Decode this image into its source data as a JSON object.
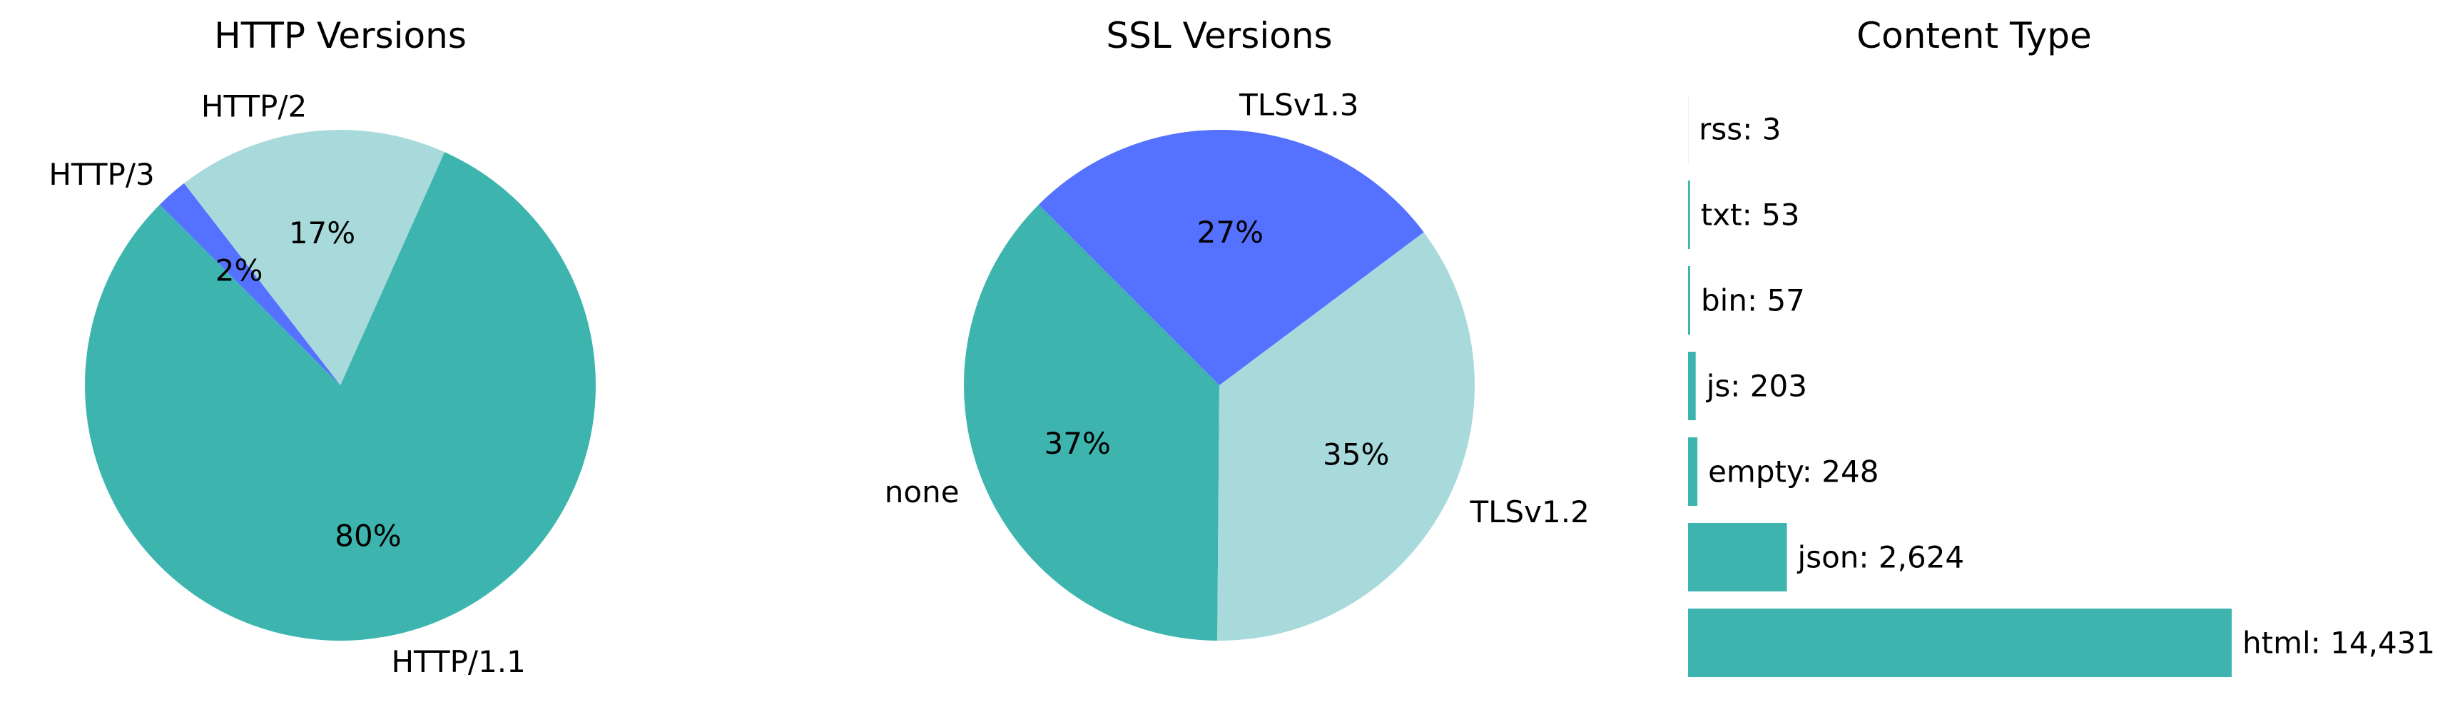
{
  "chart_data": [
    {
      "type": "pie",
      "title": "HTTP Versions",
      "slices": [
        {
          "label": "HTTP/1.1",
          "percent": 80,
          "percent_label": "80%",
          "color": "#3db5ae"
        },
        {
          "label": "HTTP/2",
          "percent": 17,
          "percent_label": "17%",
          "color": "#a8dadc"
        },
        {
          "label": "HTTP/3",
          "percent": 2,
          "percent_label": "2%",
          "color": "#5471ff"
        }
      ],
      "start_angle_deg": 135
    },
    {
      "type": "pie",
      "title": "SSL Versions",
      "slices": [
        {
          "label": "none",
          "percent": 37,
          "percent_label": "37%",
          "color": "#3db5ae"
        },
        {
          "label": "TLSv1.2",
          "percent": 35,
          "percent_label": "35%",
          "color": "#a8dadc"
        },
        {
          "label": "TLSv1.3",
          "percent": 27,
          "percent_label": "27%",
          "color": "#5471ff"
        }
      ],
      "start_angle_deg": 135
    },
    {
      "type": "bar",
      "orientation": "horizontal",
      "title": "Content Type",
      "categories": [
        "html",
        "json",
        "empty",
        "js",
        "bin",
        "txt",
        "rss"
      ],
      "values": [
        14431,
        2624,
        248,
        203,
        57,
        53,
        3
      ],
      "value_labels": [
        "html: 14,431",
        "json: 2,624",
        "empty: 248",
        "js: 203",
        "bin: 57",
        "txt: 53",
        "rss: 3"
      ],
      "color": "#3db5ae",
      "axes_visible": false
    }
  ]
}
